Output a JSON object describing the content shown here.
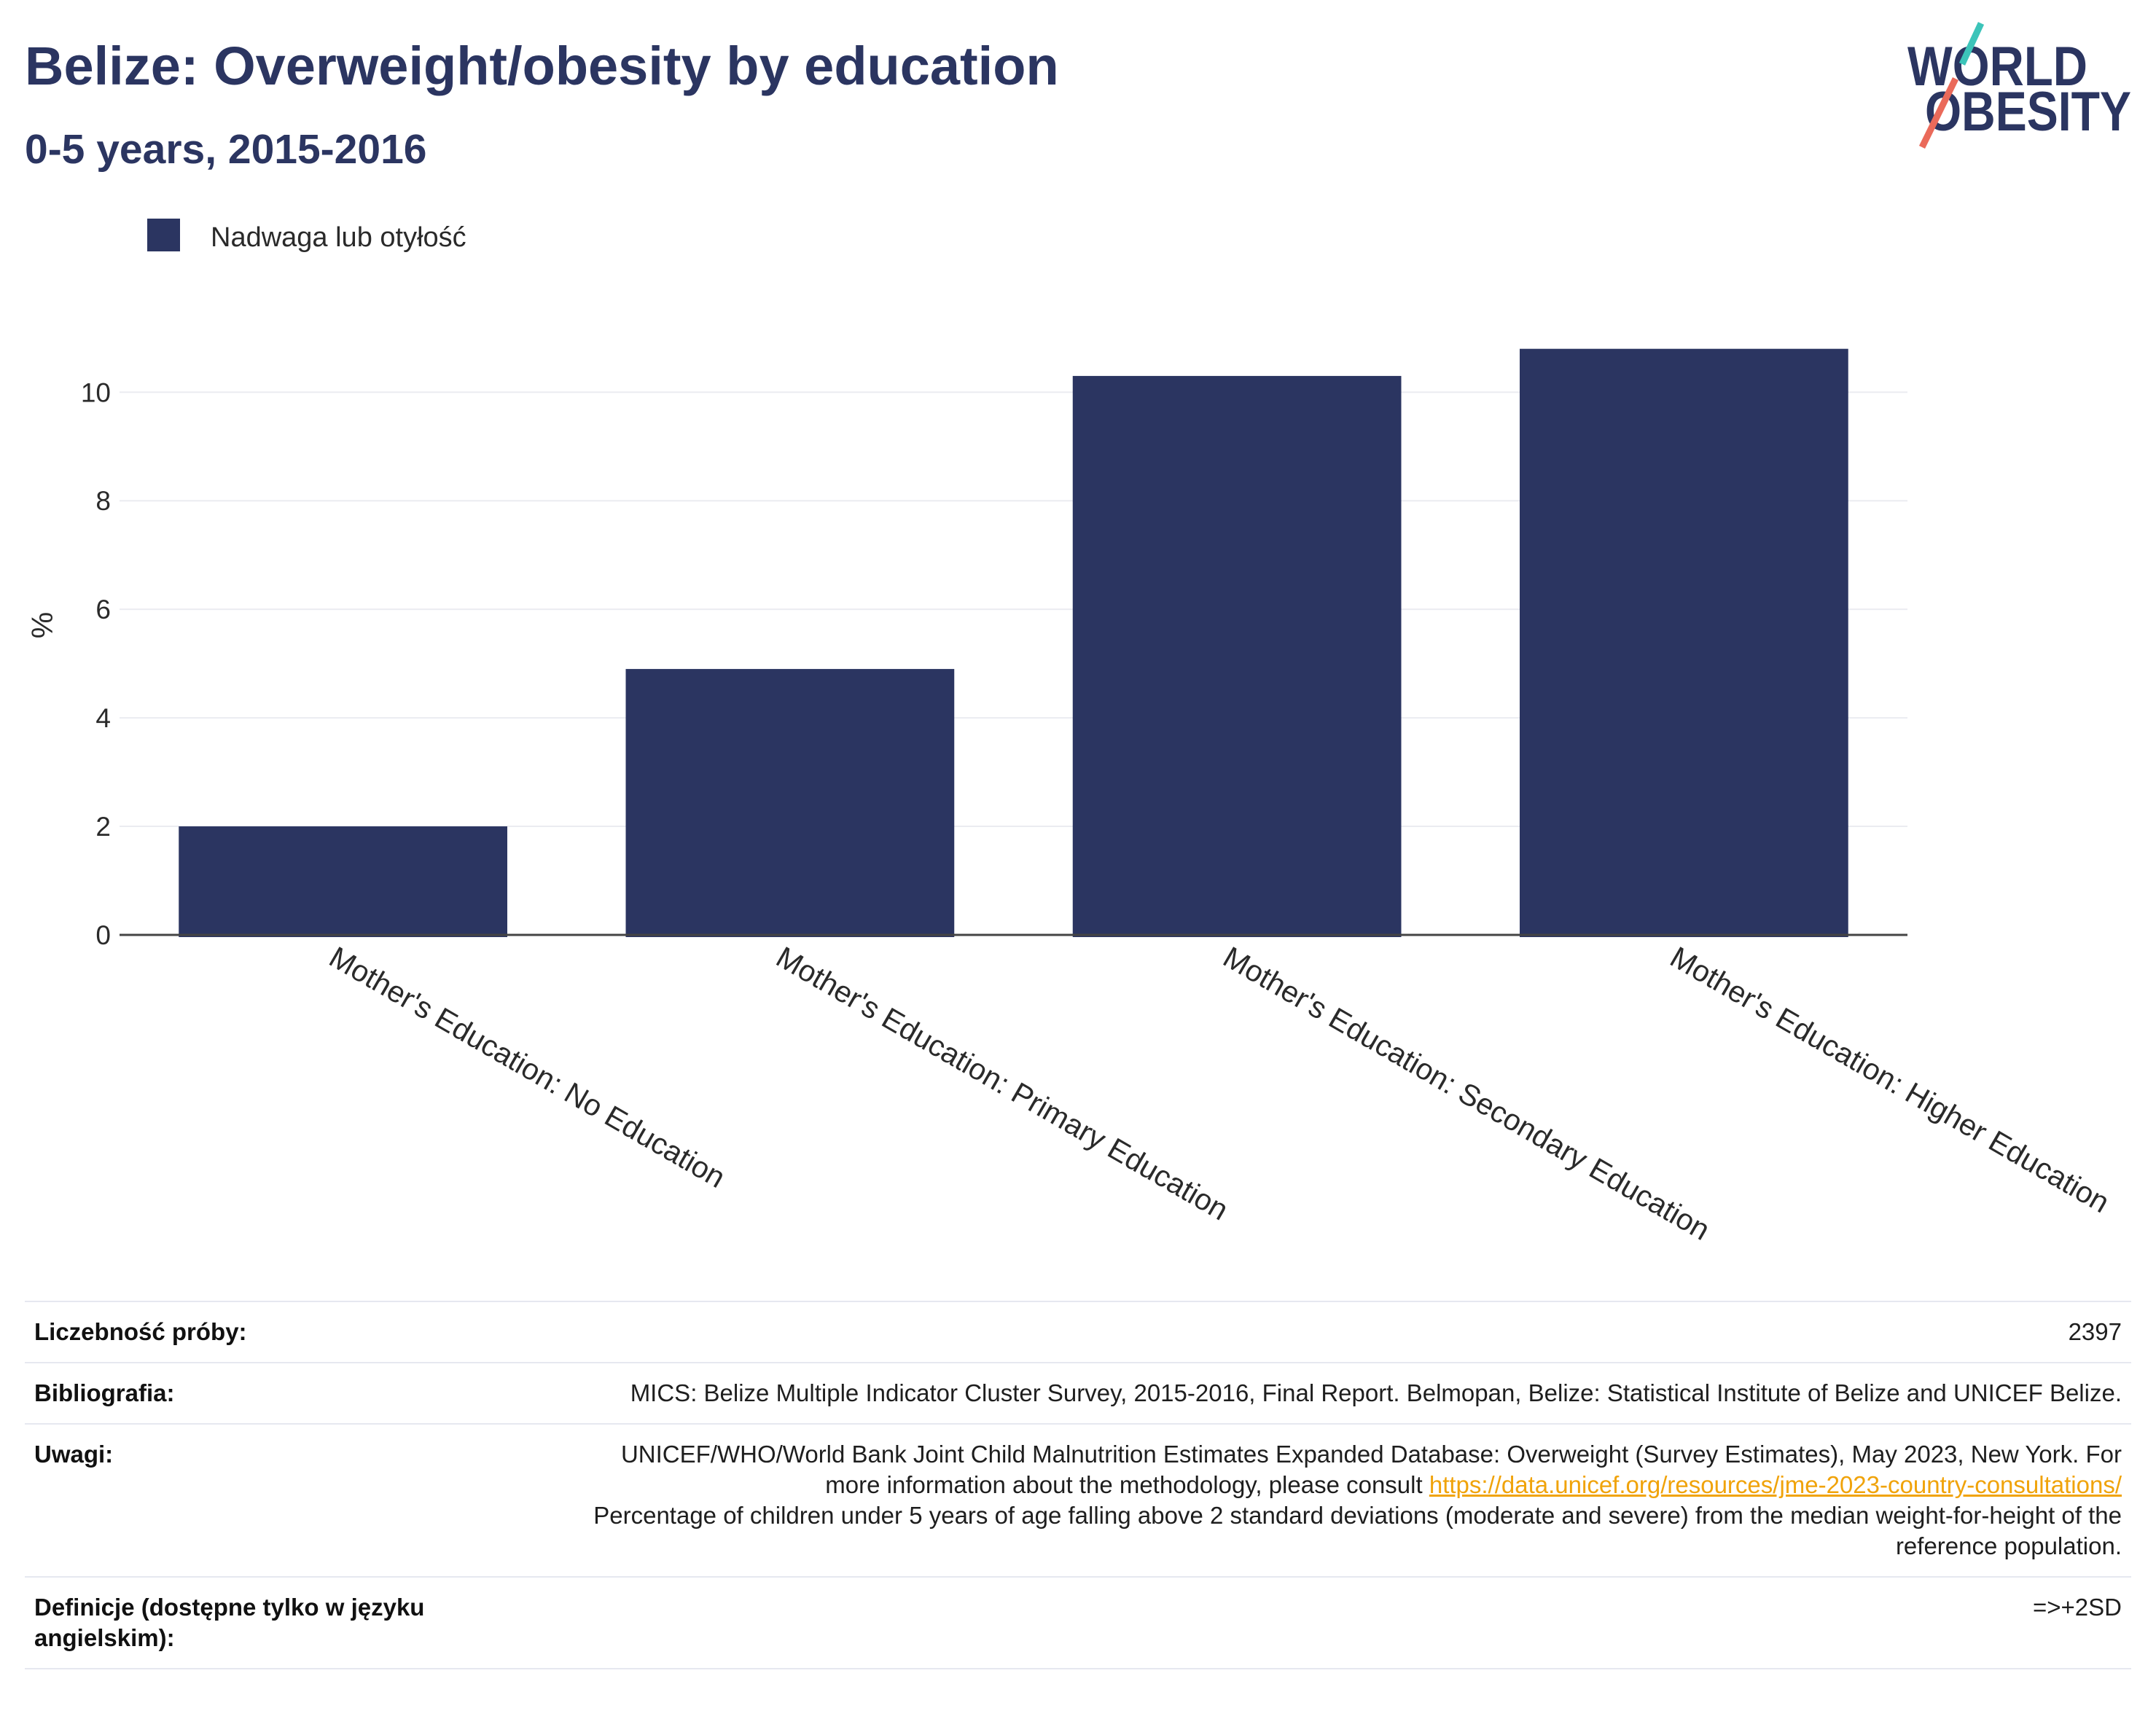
{
  "colors": {
    "primary": "#2b3561",
    "link": "#f0a30a",
    "logo_teal": "#3cc4b9",
    "logo_coral": "#ea6a5a"
  },
  "logo": {
    "line1": "WORLD",
    "line2": "OBESITY"
  },
  "chart_data": {
    "type": "bar",
    "title": "Belize: Overweight/obesity by education",
    "subtitle": "0-5 years, 2015-2016",
    "categories": [
      "Mother's Education: No Education",
      "Mother's Education: Primary Education",
      "Mother's Education: Secondary Education",
      "Mother's Education: Higher Education"
    ],
    "series": [
      {
        "name": "Nadwaga lub otyłość",
        "values": [
          2.0,
          4.9,
          10.3,
          10.8
        ],
        "color": "#2b3561"
      }
    ],
    "ylabel": "%",
    "ylim": [
      0,
      11.4
    ],
    "yticks": [
      0,
      2,
      4,
      6,
      8,
      10
    ],
    "grid": true,
    "legend": "top-left"
  },
  "info_table": {
    "sample_size": {
      "label": "Liczebność próby:",
      "value": "2397"
    },
    "bibliography": {
      "label": "Bibliografia:",
      "value": "MICS: Belize Multiple Indicator Cluster Survey, 2015-2016, Final Report. Belmopan, Belize: Statistical Institute of Belize and UNICEF Belize."
    },
    "notes": {
      "label": "Uwagi:",
      "text": "UNICEF/WHO/World Bank Joint Child Malnutrition Estimates Expanded Database: Overweight (Survey Estimates), May 2023, New York. For more information about the methodology, please consult",
      "link": "https://data.unicef.org/resources/jme-2023-country-consultations/",
      "text2": "Percentage of children under 5 years of age falling above 2 standard deviations (moderate and severe) from the median weight-for-height of the reference population."
    },
    "definitions": {
      "label": "Definicje (dostępne tylko w języku angielskim):",
      "value": "=>+2SD"
    }
  }
}
